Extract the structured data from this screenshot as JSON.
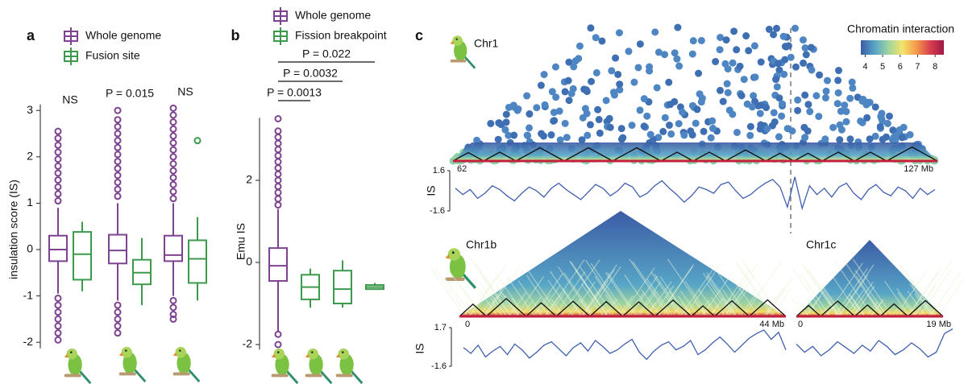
{
  "chart_data": [
    {
      "type": "box",
      "panel": "a",
      "ylabel": "insulation score (IS)",
      "ylim": [
        -2.2,
        3.2
      ],
      "yticks": [
        -2,
        -1,
        0,
        1,
        2,
        3
      ],
      "categories": [
        null,
        null,
        null
      ],
      "annotations": [
        "NS",
        "P = 0.015",
        "NS"
      ],
      "series": [
        {
          "name": "Whole genome",
          "color": "#7d4290",
          "values": [
            {
              "whislo": -0.95,
              "q1": -0.25,
              "med": 0.0,
              "q3": 0.3,
              "whishi": 0.9,
              "fliers": [
                1.05,
                1.2,
                1.35,
                1.5,
                1.65,
                1.8,
                1.95,
                2.1,
                2.25,
                2.4,
                2.55,
                -1.05,
                -1.2,
                -1.35,
                -1.5,
                -1.65,
                -1.8,
                -1.95
              ]
            },
            {
              "whislo": -1.1,
              "q1": -0.3,
              "med": -0.02,
              "q3": 0.32,
              "whishi": 1.0,
              "fliers": [
                1.15,
                1.3,
                1.45,
                1.6,
                1.75,
                1.9,
                2.05,
                2.2,
                2.35,
                2.5,
                2.65,
                2.8,
                3.0,
                -1.2,
                -1.35,
                -1.5,
                -1.65,
                -1.8
              ]
            },
            {
              "whislo": -1.0,
              "q1": -0.25,
              "med": -0.12,
              "q3": 0.3,
              "whishi": 1.0,
              "fliers": [
                1.1,
                1.25,
                1.4,
                1.55,
                1.7,
                1.85,
                2.0,
                2.15,
                2.3,
                2.45,
                2.6,
                2.75,
                2.9,
                3.05,
                -1.1,
                -1.25,
                -1.4,
                -1.5
              ]
            }
          ]
        },
        {
          "name": "Fusion site",
          "color": "#3c9a4c",
          "values": [
            {
              "whislo": -0.9,
              "q1": -0.65,
              "med": -0.1,
              "q3": 0.38,
              "whishi": 0.6,
              "fliers": []
            },
            {
              "whislo": -1.2,
              "q1": -0.75,
              "med": -0.5,
              "q3": -0.22,
              "whishi": 0.25,
              "fliers": []
            },
            {
              "whislo": -1.1,
              "q1": -0.72,
              "med": -0.2,
              "q3": 0.2,
              "whishi": 0.7,
              "fliers": [
                2.35
              ]
            }
          ]
        }
      ]
    },
    {
      "type": "box",
      "panel": "b",
      "ylabel": "Emu IS",
      "ylim": [
        -2.2,
        3.6
      ],
      "yticks": [
        -2,
        0,
        2
      ],
      "categories": [
        null,
        null,
        null,
        null
      ],
      "comparisons": [
        {
          "pair": [
            0,
            3
          ],
          "label": "P = 0.022"
        },
        {
          "pair": [
            0,
            2
          ],
          "label": "P = 0.0032"
        },
        {
          "pair": [
            0,
            1
          ],
          "label": "P = 0.0013"
        }
      ],
      "series": [
        {
          "name": "Whole genome",
          "color": "#7d4290",
          "values": [
            {
              "whislo": -1.7,
              "q1": -0.45,
              "med": -0.08,
              "q3": 0.35,
              "whishi": 1.3,
              "fliers": [
                1.4,
                1.55,
                1.7,
                1.85,
                2.0,
                2.15,
                2.3,
                2.45,
                2.6,
                2.75,
                2.9,
                3.05,
                3.2,
                3.5,
                -1.75,
                -2.0
              ]
            },
            null,
            null,
            null
          ]
        },
        {
          "name": "Fission breakpoint",
          "color": "#3c9a4c",
          "values": [
            null,
            {
              "whislo": -1.1,
              "q1": -0.9,
              "med": -0.6,
              "q3": -0.3,
              "whishi": -0.15,
              "fliers": []
            },
            {
              "whislo": -1.1,
              "q1": -1.0,
              "med": -0.65,
              "q3": -0.2,
              "whishi": 0.05,
              "fliers": []
            },
            {
              "whislo": -0.65,
              "q1": -0.65,
              "med": -0.6,
              "q3": -0.55,
              "whishi": -0.5,
              "fliers": []
            }
          ]
        }
      ]
    },
    {
      "type": "colorbar",
      "title": "Chromatin interaction",
      "lim": [
        3.75,
        8.5
      ],
      "ticks": [
        4,
        5,
        6,
        7,
        8
      ],
      "colors": [
        "#3b5ba5",
        "#57a5c7",
        "#9fd4a0",
        "#f2e46a",
        "#f59a4b",
        "#d8404e",
        "#9e1a45"
      ]
    },
    {
      "type": "line",
      "panel": "c",
      "title": "Chr1",
      "ylabel": "IS",
      "color": "#3f5fae",
      "xlim": [
        62,
        127
      ],
      "xticks": [
        62,
        {
          "value": 127,
          "label": "127 Mb"
        }
      ],
      "ylim": [
        -1.6,
        1.6
      ],
      "yticks": [
        -1.6,
        1.6
      ],
      "x": [
        62,
        63,
        64,
        65,
        66,
        67,
        68,
        69,
        70,
        71,
        72,
        73,
        74,
        75,
        76,
        77,
        78,
        79,
        80,
        81,
        82,
        83,
        84,
        85,
        86,
        87,
        88,
        89,
        90,
        91,
        92,
        93,
        94,
        95,
        96,
        97,
        98,
        99,
        100,
        101,
        102,
        103,
        104,
        105,
        106,
        107,
        108,
        109,
        110,
        111,
        112,
        113,
        114,
        115,
        116,
        117,
        118,
        119,
        120,
        121,
        122,
        123,
        124,
        125,
        126,
        127
      ],
      "values": [
        0.2,
        -0.3,
        0.1,
        -0.6,
        -0.2,
        0.4,
        0.1,
        -0.4,
        -0.8,
        -0.2,
        0.3,
        0.0,
        -0.5,
        0.2,
        0.6,
        0.1,
        -0.3,
        -0.7,
        -0.1,
        0.5,
        0.2,
        -0.4,
        0.0,
        0.6,
        0.3,
        -0.5,
        -0.2,
        0.4,
        0.8,
        0.2,
        -0.3,
        -0.9,
        -0.4,
        0.3,
        0.1,
        -0.2,
        0.5,
        0.7,
        0.0,
        -0.6,
        -0.3,
        0.2,
        0.6,
        0.9,
        0.3,
        -1.3,
        1.1,
        -1.4,
        0.4,
        -0.3,
        0.2,
        -0.5,
        0.3,
        0.6,
        -0.2,
        -0.7,
        0.1,
        0.5,
        -0.1,
        -0.4,
        0.3,
        0.0,
        -0.6,
        0.2,
        -0.3,
        0.1
      ]
    },
    {
      "type": "line",
      "title": "Chr1b",
      "ylabel": "IS",
      "color": "#3f5fae",
      "xlim": [
        0,
        44
      ],
      "xticks": [
        0,
        {
          "value": 44,
          "label": "44 Mb"
        }
      ],
      "ylim": [
        -1.6,
        1.7
      ],
      "yticks": [
        -1.6,
        1.7
      ],
      "x": [
        0,
        1,
        2,
        3,
        4,
        5,
        6,
        7,
        8,
        9,
        10,
        11,
        12,
        13,
        14,
        15,
        16,
        17,
        18,
        19,
        20,
        21,
        22,
        23,
        24,
        25,
        26,
        27,
        28,
        29,
        30,
        31,
        32,
        33,
        34,
        35,
        36,
        37,
        38,
        39,
        40,
        41,
        42,
        43,
        44
      ],
      "values": [
        0.0,
        -0.5,
        0.2,
        -0.8,
        -0.3,
        0.1,
        -0.6,
        0.3,
        -0.2,
        -0.9,
        -0.4,
        0.2,
        0.5,
        -0.1,
        -0.7,
        0.0,
        0.4,
        -0.3,
        0.6,
        0.1,
        -0.5,
        -0.2,
        0.3,
        0.7,
        -0.4,
        -1.0,
        -0.3,
        0.2,
        0.5,
        -0.2,
        0.1,
        0.6,
        -0.6,
        -0.2,
        0.4,
        0.9,
        0.3,
        -0.4,
        0.2,
        0.8,
        1.2,
        1.5,
        0.7,
        1.3,
        -0.2
      ]
    },
    {
      "type": "line",
      "title": "Chr1c",
      "color": "#3f5fae",
      "xlim": [
        0,
        19
      ],
      "xticks": [
        0,
        {
          "value": 19,
          "label": "19 Mb"
        }
      ],
      "ylim": [
        -1.6,
        1.7
      ],
      "x": [
        0,
        1,
        2,
        3,
        4,
        5,
        6,
        7,
        8,
        9,
        10,
        11,
        12,
        13,
        14,
        15,
        16,
        17,
        18,
        19
      ],
      "values": [
        0.3,
        -0.4,
        0.1,
        -0.7,
        -0.2,
        0.5,
        0.0,
        -0.5,
        0.2,
        -0.3,
        0.6,
        0.1,
        -0.6,
        -0.2,
        0.4,
        -0.1,
        -0.8,
        -0.4,
        1.2,
        1.6
      ]
    }
  ]
}
